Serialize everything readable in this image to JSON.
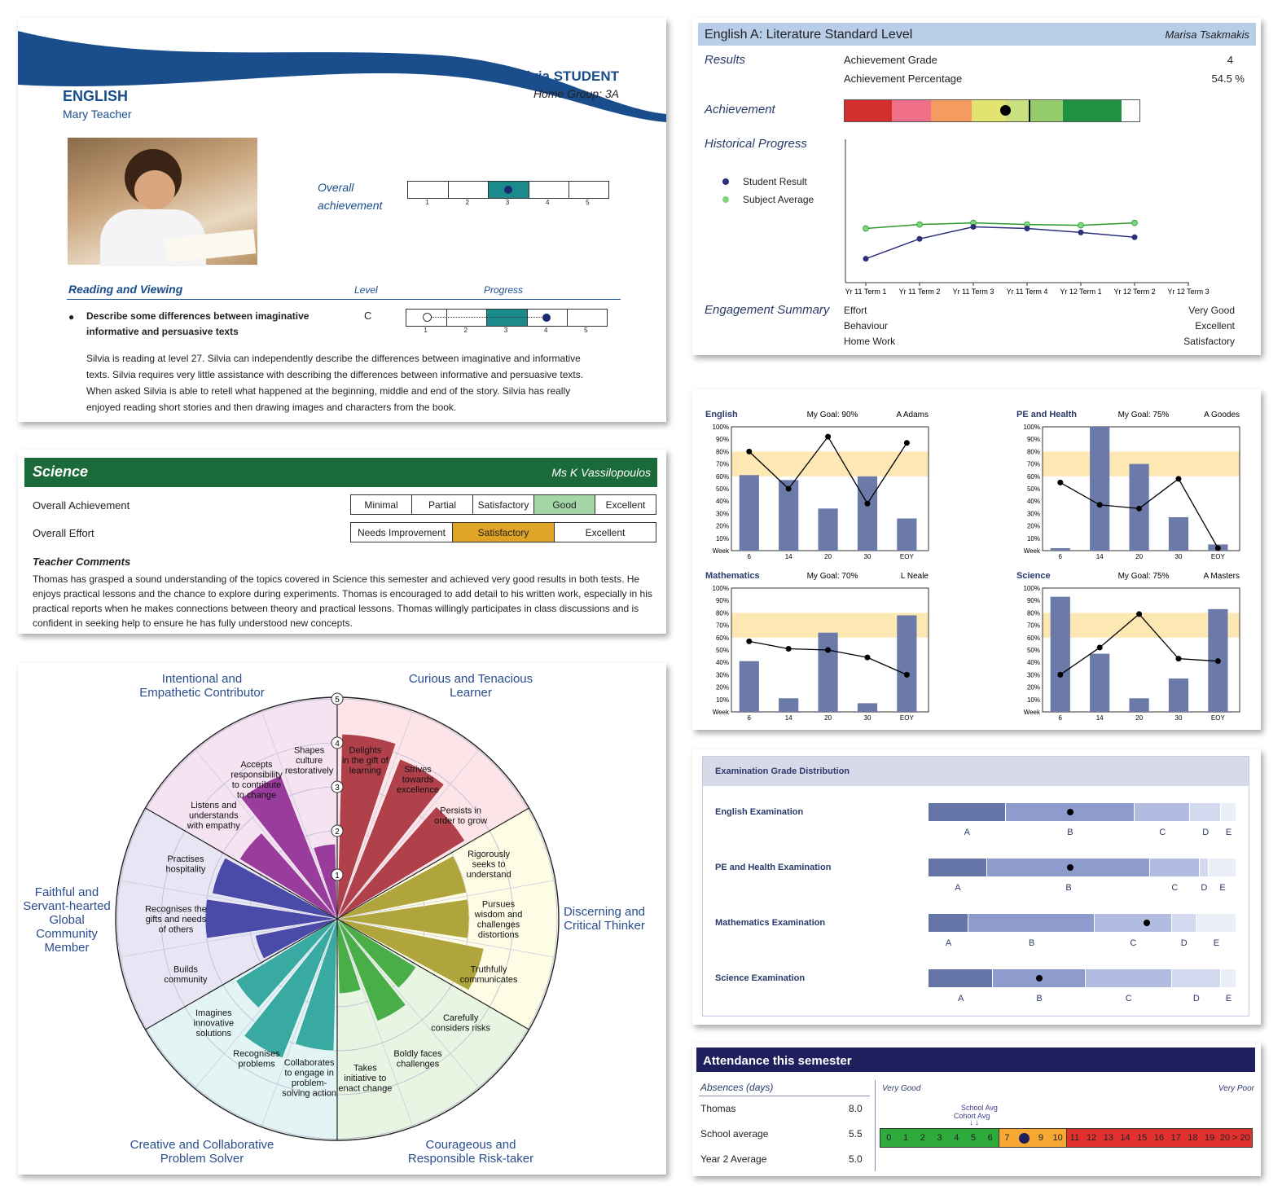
{
  "english_card": {
    "subject": "ENGLISH",
    "teacher": "Mary Teacher",
    "student": "Silvia STUDENT",
    "home_group": "Home Group: 3A",
    "overall_label_1": "Overall",
    "overall_label_2": "achievement",
    "overall_value": 3,
    "scale": [
      "1",
      "2",
      "3",
      "4",
      "5"
    ],
    "section": "Reading and Viewing",
    "level_header": "Level",
    "progress_header": "Progress",
    "outcome_line1": "Describe some differences between imaginative",
    "outcome_line2": "informative and persuasive texts",
    "level": "C",
    "progress_from": 1,
    "progress_to": 4,
    "comment": [
      "Silvia is reading at level 27. Silvia can independently describe the differences between imaginative and informative",
      "texts. Silvia requires very little assistance with describing the differences between informative and persuasive texts.",
      "When asked Silvia is able to retell what happened at the beginning, middle and end of the story. Silvia has really",
      "enjoyed reading short stories and then drawing images and characters from the book."
    ],
    "colors": {
      "wave": "#1a4d8c",
      "accent": "#1a8a8a",
      "title": "#1a4d8c"
    }
  },
  "science_card": {
    "title": "Science",
    "teacher": "Ms K Vassilopoulos",
    "achievement_label": "Overall Achievement",
    "achievement_options": [
      "Minimal",
      "Partial",
      "Satisfactory",
      "Good",
      "Excellent"
    ],
    "achievement_selected": "Good",
    "effort_label": "Overall Effort",
    "effort_options": [
      "Needs Improvement",
      "Satisfactory",
      "Excellent"
    ],
    "effort_selected": "Satisfactory",
    "comments_title": "Teacher Comments",
    "comments": [
      "Thomas has grasped a sound understanding of the topics covered in Science this semester and achieved very good results in both tests. He",
      "enjoys practical lessons and the chance to explore during experiments. Thomas is encouraged to add detail to his written work, especially in his",
      "practical reports when he makes connections between theory and practical lessons. Thomas willingly participates in class discussions and is",
      "confident in seeking help to ensure he has fully understood new concepts."
    ],
    "colors": {
      "header": "#1b6b3a",
      "good": "#a5d6a7",
      "satisfactory": "#e0a526"
    }
  },
  "wheel": {
    "scale_labels": [
      "1",
      "2",
      "3",
      "4",
      "5"
    ],
    "domains": [
      {
        "name": [
          "Intentional and",
          "Empathetic Contributor"
        ]
      },
      {
        "name": [
          "Curious and Tenacious",
          "Learner"
        ]
      },
      {
        "name": [
          "Discerning and",
          "Critical Thinker"
        ]
      },
      {
        "name": [
          "Courageous and",
          "Responsible Risk-taker"
        ]
      },
      {
        "name": [
          "Creative and Collaborative",
          "Problem Solver"
        ]
      },
      {
        "name": [
          "Faithful and",
          "Servant-hearted",
          "Global",
          "Community",
          "Member"
        ]
      }
    ],
    "segments": [
      {
        "label": [
          "Delights",
          "in the gift of",
          "learning"
        ],
        "value": 4.2,
        "color": "#b0404a"
      },
      {
        "label": [
          "Strives",
          "towards",
          "excellence"
        ],
        "value": 3.9,
        "color": "#b0404a"
      },
      {
        "label": [
          "Persists in",
          "order to grow"
        ],
        "value": 3.4,
        "color": "#b0404a"
      },
      {
        "label": [
          "Rigorously",
          "seeks to",
          "understand"
        ],
        "value": 3.0,
        "color": "#b0a43c"
      },
      {
        "label": [
          "Pursues",
          "wisdom and",
          "challenges",
          "distortions"
        ],
        "value": 3.0,
        "color": "#b0a43c"
      },
      {
        "label": [
          "Truthfully",
          "communicates"
        ],
        "value": 3.4,
        "color": "#b0a43c"
      },
      {
        "label": [
          "Carefully",
          "considers risks"
        ],
        "value": 2.1,
        "color": "#4aae48"
      },
      {
        "label": [
          "Boldly faces",
          "challenges"
        ],
        "value": 2.5,
        "color": "#4aae48"
      },
      {
        "label": [
          "Takes",
          "initiative to",
          "enact change"
        ],
        "value": 1.7,
        "color": "#4aae48"
      },
      {
        "label": [
          "Collaborates",
          "to engage in",
          "problem-",
          "solving action"
        ],
        "value": 3.0,
        "color": "#38aaa2"
      },
      {
        "label": [
          "Recognises",
          "problems"
        ],
        "value": 3.4,
        "color": "#38aaa2"
      },
      {
        "label": [
          "Imagines",
          "innovative",
          "solutions"
        ],
        "value": 2.7,
        "color": "#38aaa2"
      },
      {
        "label": [
          "Builds",
          "community"
        ],
        "value": 1.9,
        "color": "#4a4aa8"
      },
      {
        "label": [
          "Recognises the",
          "gifts and needs",
          "of others"
        ],
        "value": 3.0,
        "color": "#4a4aa8"
      },
      {
        "label": [
          "Practises",
          "hospitality"
        ],
        "value": 2.9,
        "color": "#4a4aa8"
      },
      {
        "label": [
          "Listens and",
          "understands",
          "with empathy"
        ],
        "value": 2.6,
        "color": "#9a3c9c"
      },
      {
        "label": [
          "Accepts",
          "responsibility",
          "to contribute",
          "to change"
        ],
        "value": 3.5,
        "color": "#9a3c9c"
      },
      {
        "label": [
          "Shapes",
          "culture",
          "restoratively"
        ],
        "value": 1.7,
        "color": "#9a3c9c"
      }
    ],
    "bg_colors": [
      "#fde4e8",
      "#fdfde6",
      "#e8f5e3",
      "#e3f4f4",
      "#e8e6f5",
      "#f5e3f2"
    ],
    "title_color": "#2a4d8f"
  },
  "lit_card": {
    "title": "English A: Literature Standard Level",
    "teacher": "Marisa Tsakmakis",
    "results_label": "Results",
    "grade_label": "Achievement Grade",
    "grade_value": "4",
    "percent_label": "Achievement Percentage",
    "percent_value": "54.5 %",
    "achievement_label": "Achievement",
    "achievement_fraction": 0.545,
    "historical_label": "Historical Progress",
    "legend_student": "Student Result",
    "legend_subject": "Subject Average",
    "engagement_label": "Engagement Summary",
    "engagement": [
      {
        "item": "Effort",
        "value": "Very Good"
      },
      {
        "item": "Behaviour",
        "value": "Excellent"
      },
      {
        "item": "Home Work",
        "value": "Satisfactory"
      }
    ],
    "colors": {
      "header": "#b7cde8",
      "student": "#2c2f7a",
      "subject": "#2a9a2a"
    },
    "band_colors": [
      "#d32f2f",
      "#ef6f87",
      "#f59b5f",
      "#e3e36f",
      "#c9e07f",
      "#95cc6b",
      "#1f9141"
    ],
    "chart_data": {
      "type": "line",
      "categories": [
        "Yr 11 Term 1",
        "Yr 11 Term 2",
        "Yr 11 Term 3",
        "Yr 11 Term 4",
        "Yr 12 Term 1",
        "Yr 12 Term 2",
        "Yr 12 Term 3"
      ],
      "series": [
        {
          "name": "Student Result",
          "values": [
            30,
            55,
            70,
            68,
            63,
            57,
            null
          ]
        },
        {
          "name": "Subject Average",
          "values": [
            68,
            73,
            75,
            73,
            72,
            75,
            null
          ]
        }
      ],
      "ylim": [
        0,
        180
      ]
    }
  },
  "goal_charts": {
    "week_label": "Week",
    "y_ticks": [
      "10%",
      "20%",
      "30%",
      "40%",
      "50%",
      "60%",
      "70%",
      "80%",
      "90%",
      "100%"
    ],
    "categories": [
      "6",
      "14",
      "20",
      "30",
      "EOY"
    ],
    "colors": {
      "bar": "#6c7aaa",
      "band": "#fde8b4",
      "line": "#000000"
    },
    "chart_data": [
      {
        "type": "bar",
        "title": "English",
        "goal": "My Goal: 90%",
        "teacher": "A Adams",
        "band": [
          60,
          80
        ],
        "bars": [
          61,
          57,
          34,
          60,
          26
        ],
        "line": [
          80,
          50,
          92,
          38,
          87
        ]
      },
      {
        "type": "bar",
        "title": "PE and Health",
        "goal": "My Goal: 75%",
        "teacher": "A Goodes",
        "band": [
          60,
          80
        ],
        "bars": [
          2,
          100,
          70,
          27,
          5
        ],
        "line": [
          55,
          37,
          34,
          58,
          2
        ]
      },
      {
        "type": "bar",
        "title": "Mathematics",
        "goal": "My Goal: 70%",
        "teacher": "L Neale",
        "band": [
          60,
          80
        ],
        "bars": [
          41,
          11,
          64,
          7,
          78
        ],
        "line": [
          57,
          51,
          50,
          44,
          30
        ]
      },
      {
        "type": "bar",
        "title": "Science",
        "goal": "My Goal: 75%",
        "teacher": "A Masters",
        "band": [
          60,
          80
        ],
        "bars": [
          93,
          47,
          11,
          27,
          83
        ],
        "line": [
          30,
          52,
          79,
          43,
          41
        ]
      }
    ]
  },
  "exam_card": {
    "title": "Examination Grade Distribution",
    "grade_letters": [
      "A",
      "B",
      "C",
      "D",
      "E"
    ],
    "colors": [
      "#6575a8",
      "#8e9bcd",
      "#b1bce0",
      "#d3daef",
      "#eaeef7"
    ],
    "chart_data": [
      {
        "name": "English Examination",
        "segments": [
          25,
          42,
          18,
          10,
          5
        ],
        "marker": 46
      },
      {
        "name": "PE and Health Examination",
        "segments": [
          19,
          53,
          16,
          3,
          9
        ],
        "marker": 46
      },
      {
        "name": "Mathematics Examination",
        "segments": [
          13,
          41,
          25,
          8,
          13
        ],
        "marker": 71
      },
      {
        "name": "Science Examination",
        "segments": [
          21,
          30,
          28,
          16,
          5
        ],
        "marker": 36
      }
    ]
  },
  "attendance_card": {
    "title": "Attendance this semester",
    "absences_label": "Absences (days)",
    "very_good": "Very Good",
    "very_poor": "Very Poor",
    "school_avg_label": "School Avg",
    "cohort_avg_label": "Cohort Avg",
    "rows": [
      {
        "name": "Thomas",
        "value": "8.0"
      },
      {
        "name": "School average",
        "value": "5.5"
      },
      {
        "name": "Year 2 Average",
        "value": "5.0"
      }
    ],
    "scale": [
      "0",
      "1",
      "2",
      "3",
      "4",
      "5",
      "6",
      "7",
      "8",
      "9",
      "10",
      "11",
      "12",
      "13",
      "14",
      "15",
      "16",
      "17",
      "18",
      "19",
      "20 > 20"
    ],
    "student_value": 8,
    "colors": {
      "header": "#1f1f5e",
      "good": "#2faa3c",
      "mid": "#f6a833",
      "poor": "#e0312f"
    }
  }
}
